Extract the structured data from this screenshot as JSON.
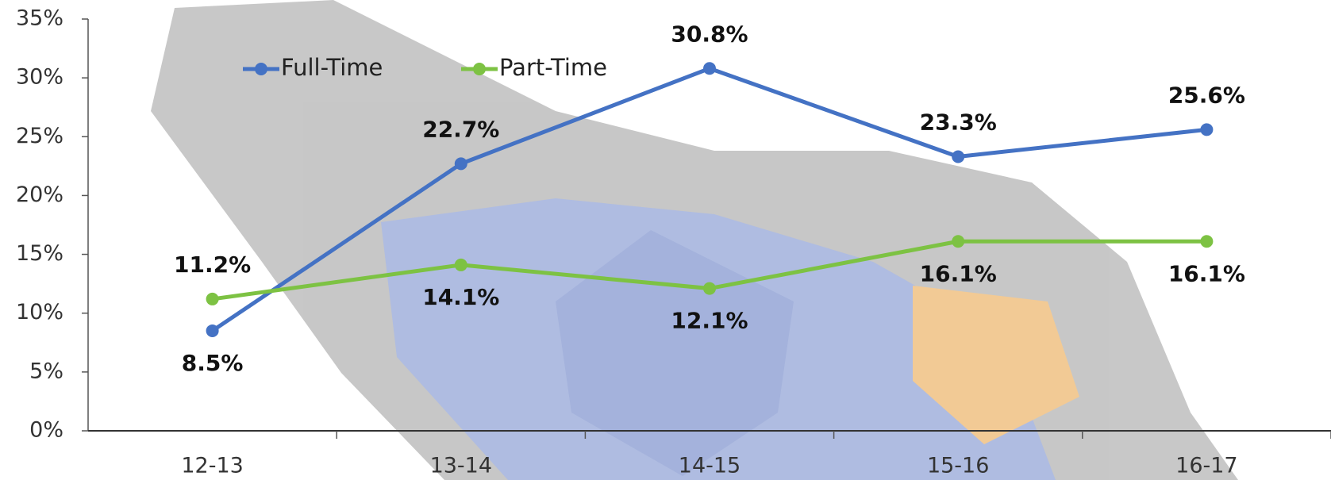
{
  "chart_data": {
    "type": "line",
    "categories": [
      "12-13",
      "13-14",
      "14-15",
      "15-16",
      "16-17"
    ],
    "series": [
      {
        "name": "Full-Time",
        "color": "#4472c4",
        "values": [
          8.5,
          22.7,
          30.8,
          23.3,
          25.6
        ],
        "value_labels": [
          "8.5%",
          "22.7%",
          "30.8%",
          "23.3%",
          "25.6%"
        ]
      },
      {
        "name": "Part-Time",
        "color": "#7dc243",
        "values": [
          11.2,
          14.1,
          12.1,
          16.1,
          16.1
        ],
        "value_labels": [
          "11.2%",
          "14.1%",
          "12.1%",
          "16.1%",
          "16.1%"
        ]
      }
    ],
    "ylim": [
      0,
      35
    ],
    "yticks": [
      {
        "value": 0,
        "label": "0%"
      },
      {
        "value": 5,
        "label": "5%"
      },
      {
        "value": 10,
        "label": "10%"
      },
      {
        "value": 15,
        "label": "15%"
      },
      {
        "value": 20,
        "label": "20%"
      },
      {
        "value": 25,
        "label": "25%"
      },
      {
        "value": 30,
        "label": "30%"
      },
      {
        "value": 35,
        "label": "35%"
      }
    ],
    "legend": "top-left"
  }
}
